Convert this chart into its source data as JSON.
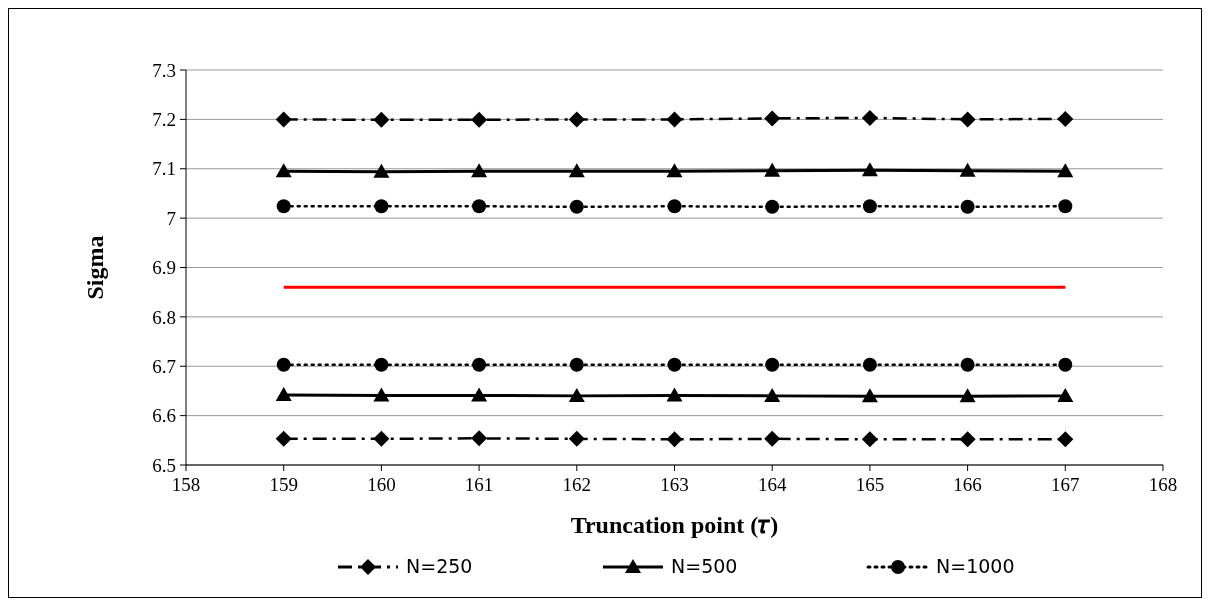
{
  "chart_data": {
    "type": "line",
    "xlabel": "Truncation point (𝜏)",
    "ylabel": "Sigma",
    "x": [
      159,
      160,
      161,
      162,
      163,
      164,
      165,
      166,
      167
    ],
    "xlim": [
      158,
      168
    ],
    "xticks": [
      158,
      159,
      160,
      161,
      162,
      163,
      164,
      165,
      166,
      167,
      168
    ],
    "ylim": [
      6.5,
      7.3
    ],
    "yticks": [
      6.5,
      6.6,
      6.7,
      6.8,
      6.9,
      7,
      7.1,
      7.2,
      7.3
    ],
    "grid": "y",
    "legend": "bottom",
    "series": [
      {
        "name": "N=250",
        "color": "#000000",
        "marker": "diamond",
        "line_style": "dashed",
        "values": [
          7.2,
          7.199,
          7.199,
          7.2,
          7.2,
          7.202,
          7.203,
          7.2,
          7.201
        ]
      },
      {
        "name": "N=500",
        "color": "#000000",
        "marker": "triangle",
        "line_style": "solid",
        "values": [
          7.095,
          7.094,
          7.095,
          7.095,
          7.095,
          7.096,
          7.097,
          7.096,
          7.095
        ]
      },
      {
        "name": "N=1000",
        "color": "#000000",
        "marker": "circle",
        "line_style": "dotted",
        "values": [
          7.024,
          7.024,
          7.024,
          7.023,
          7.024,
          7.023,
          7.024,
          7.023,
          7.024
        ]
      },
      {
        "color": "#000000",
        "marker": "circle",
        "line_style": "dotted",
        "values": [
          6.703,
          6.703,
          6.703,
          6.703,
          6.703,
          6.703,
          6.703,
          6.703,
          6.703
        ]
      },
      {
        "color": "#000000",
        "marker": "triangle",
        "line_style": "solid",
        "values": [
          6.642,
          6.641,
          6.641,
          6.64,
          6.641,
          6.64,
          6.639,
          6.639,
          6.64
        ]
      },
      {
        "color": "#000000",
        "marker": "diamond",
        "line_style": "dashed",
        "values": [
          6.553,
          6.553,
          6.554,
          6.553,
          6.552,
          6.553,
          6.552,
          6.552,
          6.552
        ]
      },
      {
        "color": "#ff0000",
        "marker": "none",
        "line_style": "solid",
        "x": [
          159,
          167
        ],
        "values": [
          6.86,
          6.86
        ]
      }
    ]
  }
}
